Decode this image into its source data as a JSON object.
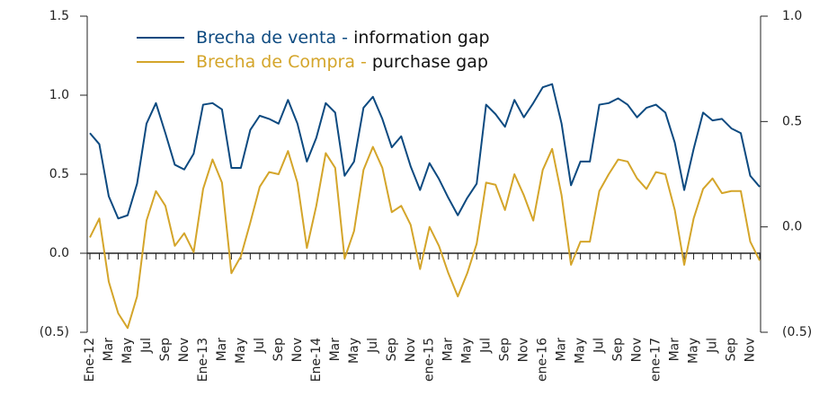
{
  "chart_data": {
    "type": "line",
    "categories": [
      "Ene-12",
      null,
      "Mar",
      null,
      "May",
      null,
      "Jul",
      null,
      "Sep",
      null,
      "Nov",
      null,
      "Ene-13",
      null,
      "Mar",
      null,
      "May",
      null,
      "Jul",
      null,
      "Sep",
      null,
      "Nov",
      null,
      "Ene-14",
      null,
      "Mar",
      null,
      "May",
      null,
      "Jul",
      null,
      "Sep",
      null,
      "Nov",
      null,
      "ene-15",
      null,
      "Mar",
      null,
      "May",
      null,
      "Jul",
      null,
      "Sep",
      null,
      "Nov",
      null,
      "ene-16",
      null,
      "Mar",
      null,
      "May",
      null,
      "Jul",
      null,
      "Sep",
      null,
      "Nov",
      null,
      "ene-17",
      null,
      "Mar",
      null,
      "May",
      null,
      "Jul",
      null,
      "Sep",
      null,
      "Nov",
      null
    ],
    "series": [
      {
        "name": "Brecha de venta - information gap",
        "color": "#0d4a80",
        "axis": "y",
        "values": [
          0.76,
          0.69,
          0.36,
          0.22,
          0.24,
          0.44,
          0.82,
          0.95,
          0.76,
          0.56,
          0.53,
          0.63,
          0.94,
          0.95,
          0.91,
          0.54,
          0.54,
          0.78,
          0.87,
          0.85,
          0.82,
          0.97,
          0.82,
          0.58,
          0.73,
          0.95,
          0.89,
          0.49,
          0.58,
          0.92,
          0.99,
          0.85,
          0.67,
          0.74,
          0.55,
          0.4,
          0.57,
          0.47,
          0.35,
          0.24,
          0.35,
          0.44,
          0.94,
          0.88,
          0.8,
          0.97,
          0.86,
          0.95,
          1.05,
          1.07,
          0.82,
          0.43,
          0.58,
          0.58,
          0.94,
          0.95,
          0.98,
          0.94,
          0.86,
          0.92,
          0.94,
          0.89,
          0.7,
          0.4,
          0.66,
          0.89,
          0.84,
          0.85,
          0.79,
          0.76,
          0.49,
          0.42
        ]
      },
      {
        "name": "Brecha de Compra - purchase gap",
        "color": "#d4a52a",
        "axis": "y2",
        "values": [
          -0.05,
          0.04,
          -0.26,
          -0.41,
          -0.48,
          -0.33,
          0.03,
          0.17,
          0.1,
          -0.09,
          -0.03,
          -0.12,
          0.18,
          0.32,
          0.21,
          -0.22,
          -0.14,
          0.02,
          0.19,
          0.26,
          0.25,
          0.36,
          0.21,
          -0.1,
          0.1,
          0.35,
          0.28,
          -0.15,
          -0.02,
          0.27,
          0.38,
          0.28,
          0.07,
          0.1,
          0.01,
          -0.2,
          0.0,
          -0.09,
          -0.22,
          -0.33,
          -0.22,
          -0.08,
          0.21,
          0.2,
          0.08,
          0.25,
          0.15,
          0.03,
          0.27,
          0.37,
          0.15,
          -0.18,
          -0.07,
          -0.07,
          0.17,
          0.25,
          0.32,
          0.31,
          0.23,
          0.18,
          0.26,
          0.25,
          0.08,
          -0.18,
          0.04,
          0.18,
          0.23,
          0.16,
          0.17,
          0.17,
          -0.07,
          -0.16
        ]
      }
    ],
    "ylim": [
      -0.5,
      1.5
    ],
    "yticks": [
      {
        "value": -0.5,
        "label": "(0.5)"
      },
      {
        "value": 0,
        "label": "0.0"
      },
      {
        "value": 0.5,
        "label": "0.5"
      },
      {
        "value": 1.0,
        "label": "1.0"
      },
      {
        "value": 1.5,
        "label": "1.5"
      }
    ],
    "y2lim": [
      -0.5,
      1.0
    ],
    "y2ticks": [
      {
        "value": -0.5,
        "label": "(0.5)"
      },
      {
        "value": 0,
        "label": "0.0"
      },
      {
        "value": 0.5,
        "label": "0.5"
      },
      {
        "value": 1.0,
        "label": "1.0"
      }
    ],
    "grid": false,
    "legend": "top-left"
  }
}
